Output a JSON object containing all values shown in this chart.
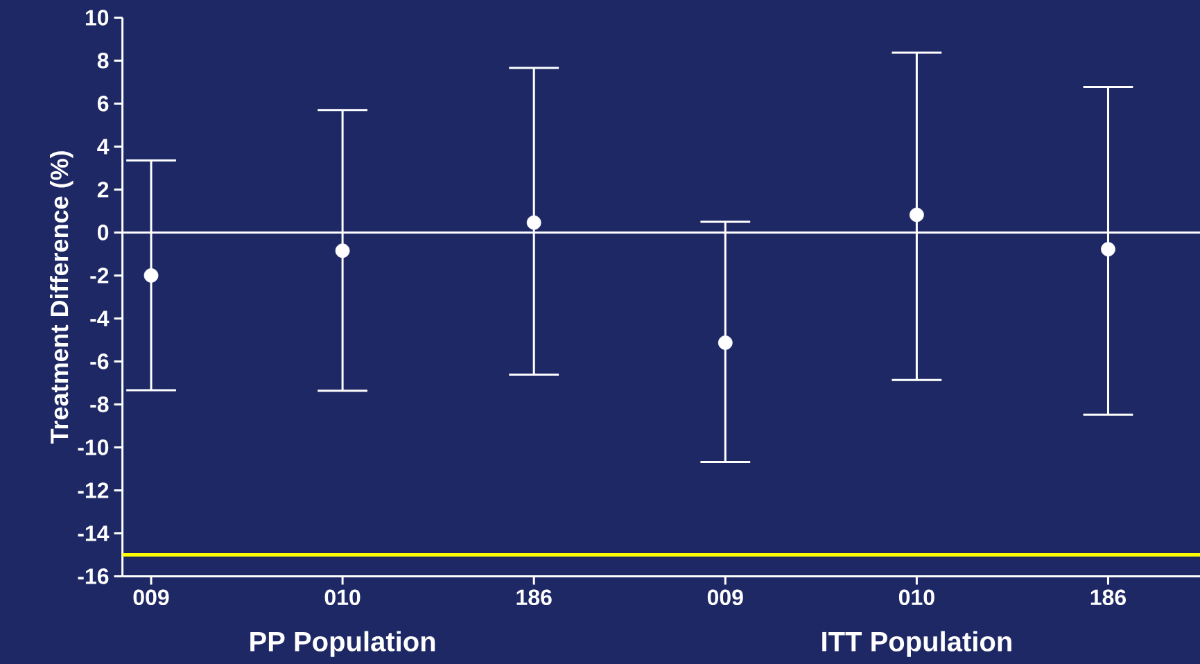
{
  "chart_data": {
    "type": "scatter",
    "categories": [
      "009",
      "010",
      "186",
      "009",
      "010",
      "186"
    ],
    "ylabel": "Treatment Difference (%)",
    "ylim": [
      -16,
      10
    ],
    "yticks": [
      -16,
      -14,
      -12,
      -10,
      -8,
      -6,
      -4,
      -2,
      0,
      2,
      4,
      6,
      8,
      10
    ],
    "series": [
      {
        "color": "#ffffff",
        "values": [
          -2.0,
          -0.85,
          0.46,
          -5.13,
          0.82,
          -0.78
        ],
        "errors": [
          [
            -7.34,
            3.35
          ],
          [
            -7.37,
            5.7
          ],
          [
            -6.62,
            7.66
          ],
          [
            -10.68,
            0.5
          ],
          [
            -6.87,
            8.37
          ],
          [
            -8.48,
            6.77
          ]
        ]
      }
    ],
    "ref_lines": [
      {
        "axis": "y",
        "value": 0,
        "color": "#ffffff"
      },
      {
        "axis": "y",
        "value": -15,
        "color": "#ffff00"
      }
    ],
    "annotations": [
      "PP Population",
      "ITT Population"
    ]
  }
}
